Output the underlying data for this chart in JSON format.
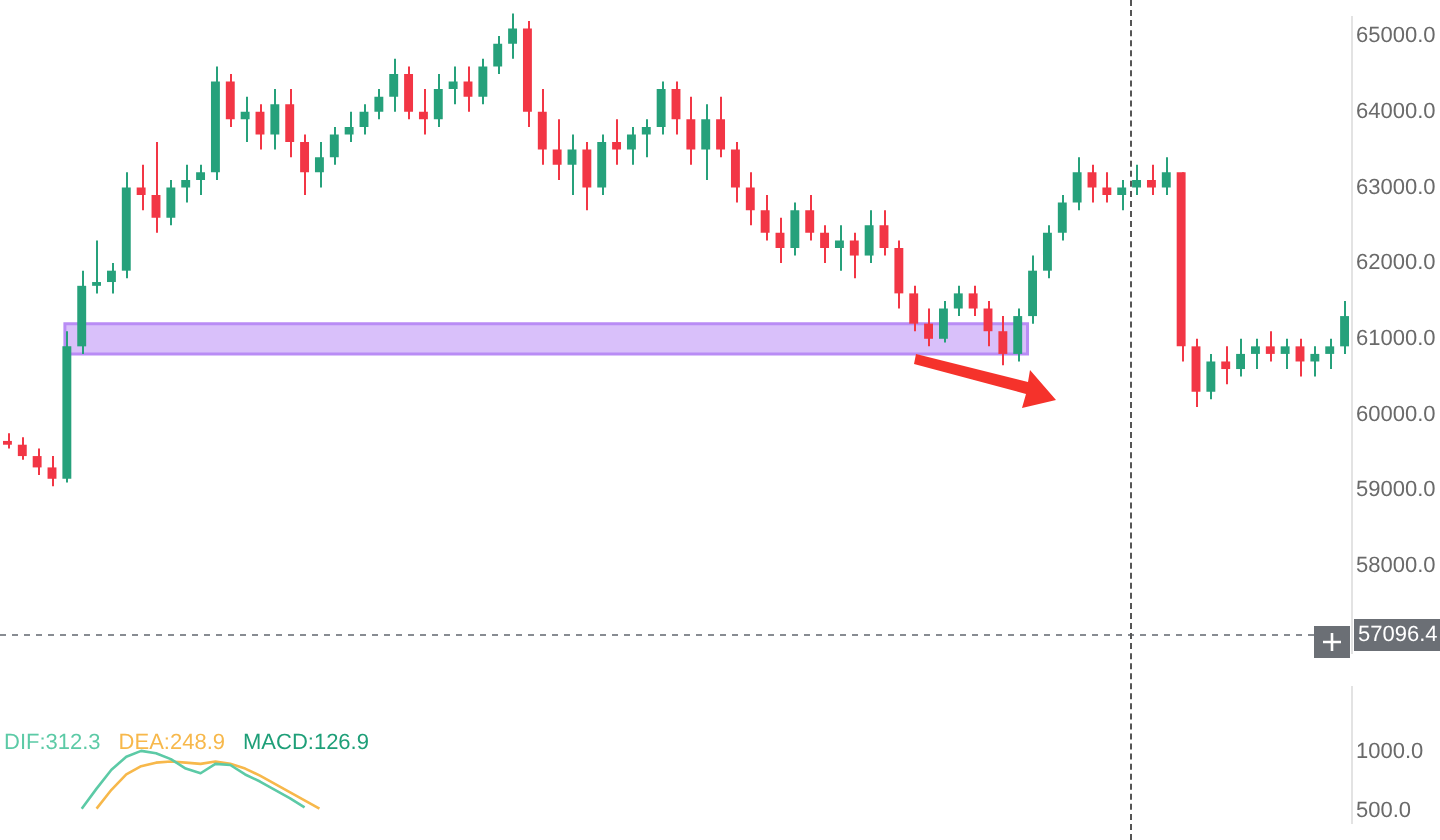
{
  "chart_data": [
    {
      "type": "candlestick",
      "categories": [
        null,
        null,
        null,
        null,
        null,
        null,
        null,
        null,
        null,
        null,
        null,
        null,
        null,
        null,
        null,
        null,
        null,
        null,
        null,
        null,
        null,
        null,
        null,
        null,
        null,
        null,
        null,
        null,
        null,
        null,
        null,
        null,
        null,
        null,
        null,
        null,
        null,
        null,
        null,
        null,
        null,
        null,
        null,
        null,
        null,
        null,
        null,
        null,
        null,
        null,
        null,
        null,
        null,
        null,
        null,
        null,
        null,
        null,
        null,
        null,
        null,
        null,
        null,
        null,
        null,
        null,
        null,
        null,
        null,
        null,
        null,
        null,
        null,
        null,
        null,
        null,
        null,
        null,
        null,
        null,
        null,
        null,
        null,
        null,
        null,
        null,
        null,
        null,
        null,
        null,
        null
      ],
      "ohlc": [
        [
          59650,
          59750,
          59550,
          59600
        ],
        [
          59600,
          59700,
          59400,
          59450
        ],
        [
          59450,
          59550,
          59200,
          59300
        ],
        [
          59300,
          59450,
          59050,
          59150
        ],
        [
          59150,
          61100,
          59100,
          60900
        ],
        [
          60900,
          61900,
          60800,
          61700
        ],
        [
          61700,
          62300,
          61600,
          61750
        ],
        [
          61750,
          62000,
          61600,
          61900
        ],
        [
          61900,
          63200,
          61800,
          63000
        ],
        [
          63000,
          63300,
          62700,
          62900
        ],
        [
          62900,
          63600,
          62400,
          62600
        ],
        [
          62600,
          63100,
          62500,
          63000
        ],
        [
          63000,
          63300,
          62800,
          63100
        ],
        [
          63100,
          63300,
          62900,
          63200
        ],
        [
          63200,
          64600,
          63100,
          64400
        ],
        [
          64400,
          64500,
          63800,
          63900
        ],
        [
          63900,
          64200,
          63600,
          64000
        ],
        [
          64000,
          64100,
          63500,
          63700
        ],
        [
          63700,
          64300,
          63500,
          64100
        ],
        [
          64100,
          64300,
          63400,
          63600
        ],
        [
          63600,
          63700,
          62900,
          63200
        ],
        [
          63200,
          63600,
          63000,
          63400
        ],
        [
          63400,
          63800,
          63300,
          63700
        ],
        [
          63700,
          64000,
          63600,
          63800
        ],
        [
          63800,
          64100,
          63700,
          64000
        ],
        [
          64000,
          64300,
          63900,
          64200
        ],
        [
          64200,
          64700,
          64000,
          64500
        ],
        [
          64500,
          64600,
          63900,
          64000
        ],
        [
          64000,
          64300,
          63700,
          63900
        ],
        [
          63900,
          64500,
          63800,
          64300
        ],
        [
          64300,
          64600,
          64100,
          64400
        ],
        [
          64400,
          64600,
          64000,
          64200
        ],
        [
          64200,
          64700,
          64100,
          64600
        ],
        [
          64600,
          65000,
          64500,
          64900
        ],
        [
          64900,
          65300,
          64700,
          65100
        ],
        [
          65100,
          65200,
          63800,
          64000
        ],
        [
          64000,
          64300,
          63300,
          63500
        ],
        [
          63500,
          63900,
          63100,
          63300
        ],
        [
          63300,
          63700,
          62900,
          63500
        ],
        [
          63500,
          63600,
          62700,
          63000
        ],
        [
          63000,
          63700,
          62900,
          63600
        ],
        [
          63600,
          63900,
          63300,
          63500
        ],
        [
          63500,
          63800,
          63300,
          63700
        ],
        [
          63700,
          63900,
          63400,
          63800
        ],
        [
          63800,
          64400,
          63700,
          64300
        ],
        [
          64300,
          64400,
          63700,
          63900
        ],
        [
          63900,
          64200,
          63300,
          63500
        ],
        [
          63500,
          64100,
          63100,
          63900
        ],
        [
          63900,
          64200,
          63400,
          63500
        ],
        [
          63500,
          63600,
          62800,
          63000
        ],
        [
          63000,
          63200,
          62500,
          62700
        ],
        [
          62700,
          62900,
          62300,
          62400
        ],
        [
          62400,
          62600,
          62000,
          62200
        ],
        [
          62200,
          62800,
          62100,
          62700
        ],
        [
          62700,
          62900,
          62300,
          62400
        ],
        [
          62400,
          62500,
          62000,
          62200
        ],
        [
          62200,
          62500,
          61900,
          62300
        ],
        [
          62300,
          62400,
          61800,
          62100
        ],
        [
          62100,
          62700,
          62000,
          62500
        ],
        [
          62500,
          62700,
          62100,
          62200
        ],
        [
          62200,
          62300,
          61400,
          61600
        ],
        [
          61600,
          61700,
          61100,
          61200
        ],
        [
          61200,
          61400,
          60900,
          61000
        ],
        [
          61000,
          61500,
          60950,
          61400
        ],
        [
          61400,
          61700,
          61300,
          61600
        ],
        [
          61600,
          61700,
          61300,
          61400
        ],
        [
          61400,
          61500,
          60900,
          61100
        ],
        [
          61100,
          61300,
          60650,
          60800
        ],
        [
          60800,
          61400,
          60700,
          61300
        ],
        [
          61300,
          62100,
          61200,
          61900
        ],
        [
          61900,
          62500,
          61800,
          62400
        ],
        [
          62400,
          62900,
          62300,
          62800
        ],
        [
          62800,
          63400,
          62700,
          63200
        ],
        [
          63200,
          63300,
          62800,
          63000
        ],
        [
          63000,
          63200,
          62800,
          62900
        ],
        [
          62900,
          63100,
          62700,
          63000
        ],
        [
          63000,
          63300,
          62900,
          63100
        ],
        [
          63100,
          63300,
          62900,
          63000
        ],
        [
          63000,
          63400,
          62900,
          63200
        ],
        [
          63200,
          63200,
          60700,
          60900
        ],
        [
          60900,
          61000,
          60100,
          60300
        ],
        [
          60300,
          60800,
          60200,
          60700
        ],
        [
          60700,
          60900,
          60400,
          60600
        ],
        [
          60600,
          61000,
          60500,
          60800
        ],
        [
          60800,
          61000,
          60600,
          60900
        ],
        [
          60900,
          61100,
          60700,
          60800
        ],
        [
          60800,
          61000,
          60600,
          60900
        ],
        [
          60900,
          61000,
          60500,
          60700
        ],
        [
          60700,
          60900,
          60500,
          60800
        ],
        [
          60800,
          61000,
          60600,
          60900
        ],
        [
          60900,
          61500,
          60800,
          61300
        ]
      ],
      "colors": [
        "#f23645",
        "#f23645",
        "#f23645",
        "#f23645",
        "#26a17b",
        "#26a17b",
        "#26a17b",
        "#26a17b",
        "#26a17b",
        "#f23645",
        "#f23645",
        "#26a17b",
        "#26a17b",
        "#26a17b",
        "#26a17b",
        "#f23645",
        "#26a17b",
        "#f23645",
        "#26a17b",
        "#f23645",
        "#f23645",
        "#26a17b",
        "#26a17b",
        "#26a17b",
        "#26a17b",
        "#26a17b",
        "#26a17b",
        "#f23645",
        "#f23645",
        "#26a17b",
        "#26a17b",
        "#f23645",
        "#26a17b",
        "#26a17b",
        "#26a17b",
        "#f23645",
        "#f23645",
        "#f23645",
        "#26a17b",
        "#f23645",
        "#26a17b",
        "#f23645",
        "#26a17b",
        "#26a17b",
        "#26a17b",
        "#f23645",
        "#f23645",
        "#26a17b",
        "#f23645",
        "#f23645",
        "#f23645",
        "#f23645",
        "#f23645",
        "#26a17b",
        "#f23645",
        "#f23645",
        "#26a17b",
        "#f23645",
        "#26a17b",
        "#f23645",
        "#f23645",
        "#f23645",
        "#f23645",
        "#26a17b",
        "#26a17b",
        "#f23645",
        "#f23645",
        "#f23645",
        "#26a17b",
        "#26a17b",
        "#26a17b",
        "#26a17b",
        "#26a17b",
        "#f23645",
        "#f23645",
        "#26a17b",
        "#26a17b",
        "#f23645",
        "#26a17b",
        "#f23645",
        "#f23645",
        "#26a17b",
        "#f23645",
        "#26a17b",
        "#26a17b",
        "#f23645",
        "#26a17b",
        "#f23645",
        "#26a17b",
        "#26a17b",
        "#26a17b"
      ],
      "ylim": [
        56850,
        65250
      ],
      "yticks": [
        {
          "value": 58000,
          "label": "58000.0"
        },
        {
          "value": 59000,
          "label": "59000.0"
        },
        {
          "value": 60000,
          "label": "60000.0"
        },
        {
          "value": 61000,
          "label": "61000.0"
        },
        {
          "value": 62000,
          "label": "62000.0"
        },
        {
          "value": 63000,
          "label": "63000.0"
        },
        {
          "value": 64000,
          "label": "64000.0"
        },
        {
          "value": 65000,
          "label": "65000.0"
        }
      ],
      "bands": [
        {
          "axis": "y",
          "from": 60800,
          "to": 61200,
          "color": "#b98cf5"
        }
      ],
      "ref_lines": [
        {
          "axis": "y",
          "value": 57096.4,
          "label": "57096.4",
          "color": "#888c92",
          "line_style": "dashed"
        }
      ]
    },
    {
      "type": "line",
      "categories": [
        null,
        null,
        null,
        null,
        null,
        null,
        null,
        null,
        null,
        null,
        null,
        null,
        null,
        null,
        null,
        null,
        null,
        null,
        null,
        null,
        null,
        null,
        null,
        null,
        null,
        null,
        null,
        null,
        null,
        null,
        null,
        null,
        null,
        null,
        null,
        null,
        null,
        null,
        null,
        null,
        null,
        null,
        null,
        null,
        null,
        null,
        null,
        null,
        null,
        null,
        null,
        null,
        null,
        null,
        null,
        null,
        null,
        null,
        null,
        null,
        null,
        null,
        null,
        null,
        null,
        null,
        null,
        null,
        null,
        null,
        null,
        null,
        null,
        null,
        null,
        null,
        null,
        null,
        null,
        null,
        null,
        null,
        null,
        null,
        null,
        null,
        null,
        null,
        null,
        null,
        null
      ],
      "series": [
        {
          "name": "DIF:312.3",
          "color": "#5ccaa6",
          "values": [
            null,
            null,
            null,
            null,
            null,
            520,
            690,
            850,
            960,
            1010,
            990,
            940,
            860,
            820,
            900,
            890,
            810,
            750,
            680,
            610,
            530,
            null,
            null,
            null,
            null,
            null,
            null,
            null,
            null,
            null,
            null,
            null,
            null,
            null,
            null,
            null,
            null,
            null,
            null,
            null,
            null,
            null,
            null,
            null,
            null,
            null,
            null,
            null,
            null,
            null,
            null,
            null,
            null,
            null,
            null,
            null,
            null,
            null,
            null,
            null,
            null,
            null,
            null,
            null,
            null,
            null,
            null,
            null,
            null,
            null,
            null,
            null,
            null,
            null,
            null,
            null,
            null,
            null,
            null,
            null,
            null,
            null,
            null,
            null,
            null,
            null,
            null,
            null,
            null,
            null,
            null
          ]
        },
        {
          "name": "DEA:248.9",
          "color": "#f7b84b",
          "values": [
            null,
            null,
            null,
            null,
            null,
            null,
            520,
            680,
            810,
            880,
            910,
            920,
            910,
            900,
            920,
            900,
            860,
            800,
            730,
            660,
            590,
            520,
            null,
            null,
            null,
            null,
            null,
            null,
            null,
            null,
            null,
            null,
            null,
            null,
            null,
            null,
            null,
            null,
            null,
            null,
            null,
            null,
            null,
            null,
            null,
            null,
            null,
            null,
            null,
            null,
            null,
            null,
            null,
            null,
            null,
            null,
            null,
            null,
            null,
            null,
            null,
            null,
            null,
            null,
            null,
            null,
            null,
            null,
            null,
            null,
            null,
            null,
            null,
            null,
            null,
            null,
            null,
            null,
            null,
            null,
            null,
            null,
            null,
            null,
            null,
            null,
            null,
            null,
            null,
            null,
            null
          ]
        },
        {
          "name": "MACD:126.9",
          "color": "#1e9f78",
          "values": [
            null,
            null,
            null,
            null,
            null,
            null,
            null,
            null,
            null,
            null,
            null,
            null,
            null,
            null,
            null,
            null,
            null,
            null,
            null,
            null,
            null,
            null,
            null,
            null,
            null,
            null,
            null,
            null,
            null,
            null,
            null,
            null,
            null,
            null,
            null,
            null,
            null,
            null,
            null,
            null,
            null,
            null,
            null,
            null,
            null,
            null,
            null,
            null,
            null,
            null,
            null,
            null,
            null,
            null,
            null,
            null,
            null,
            null,
            null,
            null,
            null,
            null,
            null,
            null,
            null,
            null,
            null,
            null,
            null,
            null,
            null,
            null,
            null,
            null,
            null,
            null,
            null,
            null,
            null,
            null,
            null,
            null,
            null,
            null,
            null,
            null,
            null,
            null,
            null,
            null,
            null
          ]
        }
      ],
      "ylim": [
        400,
        1550
      ],
      "yticks": [
        {
          "value": 1000,
          "label": "1000.0"
        },
        {
          "value": 500,
          "label": "500.0"
        }
      ],
      "legend": "top left"
    }
  ]
}
